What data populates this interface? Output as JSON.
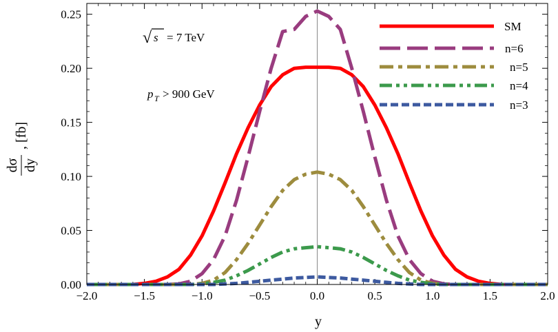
{
  "chart_data": {
    "type": "line",
    "title": "",
    "xlabel": "y",
    "ylabel": {
      "numerator": "dσ",
      "denominator": "dy",
      "suffix": ", [fb]"
    },
    "xlim": [
      -2.0,
      2.0
    ],
    "ylim": [
      0.0,
      0.26
    ],
    "x_ticks": [
      -2.0,
      -1.5,
      -1.0,
      -0.5,
      0.0,
      0.5,
      1.0,
      1.5,
      2.0
    ],
    "x_tick_labels": [
      "−2.0",
      "−1.5",
      "−1.0",
      "−0.5",
      "0.0",
      "0.5",
      "1.0",
      "1.5",
      "2.0"
    ],
    "y_ticks": [
      0.0,
      0.05,
      0.1,
      0.15,
      0.2,
      0.25
    ],
    "y_tick_labels": [
      "0.00",
      "0.05",
      "0.10",
      "0.15",
      "0.20",
      "0.25"
    ],
    "grid": false,
    "legend_position": "top-right",
    "annotations": {
      "energy_sqrt": "√",
      "energy_s": "s",
      "energy_rest": "= 7 TeV",
      "pt_p": "p",
      "pt_sub": "T",
      "pt_rest": "> 900 GeV"
    },
    "x": [
      -2.0,
      -1.9,
      -1.8,
      -1.7,
      -1.6,
      -1.5,
      -1.4,
      -1.3,
      -1.2,
      -1.1,
      -1.0,
      -0.9,
      -0.8,
      -0.7,
      -0.6,
      -0.5,
      -0.4,
      -0.3,
      -0.2,
      -0.1,
      0.0,
      0.1,
      0.2,
      0.3,
      0.4,
      0.5,
      0.6,
      0.7,
      0.8,
      0.9,
      1.0,
      1.1,
      1.2,
      1.3,
      1.4,
      1.5,
      1.6,
      1.7,
      1.8,
      1.9,
      2.0
    ],
    "series": [
      {
        "name": "SM",
        "color": "#ff0000",
        "dash": "solid",
        "values": [
          0.0,
          0.0,
          0.0,
          0.0,
          0.0,
          0.001,
          0.003,
          0.007,
          0.014,
          0.027,
          0.045,
          0.068,
          0.094,
          0.121,
          0.145,
          0.166,
          0.183,
          0.194,
          0.2,
          0.201,
          0.201,
          0.201,
          0.2,
          0.194,
          0.183,
          0.166,
          0.145,
          0.121,
          0.094,
          0.068,
          0.045,
          0.027,
          0.014,
          0.007,
          0.003,
          0.001,
          0.0,
          0.0,
          0.0,
          0.0,
          0.0
        ]
      },
      {
        "name": "n=6",
        "color": "#993c7f",
        "dash": "long-dash",
        "values": [
          0.0,
          0.0,
          0.0,
          0.0,
          0.0,
          0.0,
          0.0,
          0.0,
          0.0005,
          0.003,
          0.01,
          0.023,
          0.045,
          0.078,
          0.118,
          0.16,
          0.2,
          0.234,
          0.236,
          0.248,
          0.253,
          0.248,
          0.236,
          0.2,
          0.16,
          0.118,
          0.078,
          0.045,
          0.023,
          0.01,
          0.003,
          0.0005,
          0.0,
          0.0,
          0.0,
          0.0,
          0.0,
          0.0,
          0.0,
          0.0,
          0.0
        ]
      },
      {
        "name": "n=5",
        "color": "#9d8c3e",
        "dash": "dash-dot",
        "values": [
          0.0,
          0.0,
          0.0,
          0.0,
          0.0,
          0.0,
          0.0,
          0.0,
          0.0,
          0.0,
          0.001,
          0.004,
          0.011,
          0.023,
          0.038,
          0.055,
          0.072,
          0.087,
          0.097,
          0.102,
          0.104,
          0.102,
          0.097,
          0.087,
          0.072,
          0.055,
          0.038,
          0.023,
          0.011,
          0.004,
          0.001,
          0.0,
          0.0,
          0.0,
          0.0,
          0.0,
          0.0,
          0.0,
          0.0,
          0.0,
          0.0
        ]
      },
      {
        "name": "n=4",
        "color": "#3c9a4c",
        "dash": "dash-dot-dot",
        "values": [
          0.0,
          0.0,
          0.0,
          0.0,
          0.0,
          0.0,
          0.0,
          0.0,
          0.0,
          0.0,
          0.0005,
          0.002,
          0.004,
          0.008,
          0.013,
          0.019,
          0.025,
          0.03,
          0.033,
          0.034,
          0.035,
          0.034,
          0.033,
          0.03,
          0.025,
          0.019,
          0.013,
          0.008,
          0.004,
          0.002,
          0.0005,
          0.0,
          0.0,
          0.0,
          0.0,
          0.0,
          0.0,
          0.0,
          0.0,
          0.0,
          0.0
        ]
      },
      {
        "name": "n=3",
        "color": "#3d5aa0",
        "dash": "short-dash",
        "values": [
          0.0,
          0.0,
          0.0,
          0.0,
          0.0,
          0.0,
          0.0,
          0.0,
          0.0,
          0.0,
          0.0,
          0.0,
          0.0005,
          0.001,
          0.002,
          0.003,
          0.004,
          0.005,
          0.006,
          0.0065,
          0.007,
          0.0065,
          0.006,
          0.005,
          0.004,
          0.003,
          0.002,
          0.001,
          0.0005,
          0.0,
          0.0,
          0.0,
          0.0,
          0.0,
          0.0,
          0.0,
          0.0,
          0.0,
          0.0,
          0.0,
          0.0
        ]
      }
    ]
  }
}
